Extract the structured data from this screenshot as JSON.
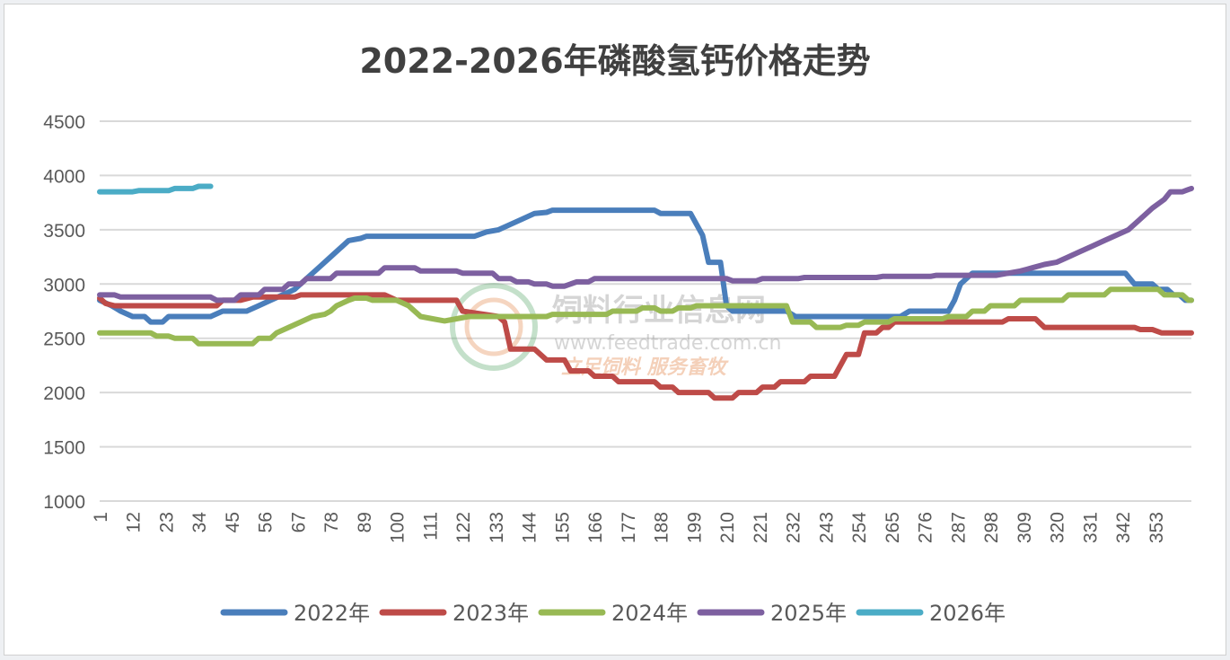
{
  "chart_data": {
    "type": "line",
    "title": "2022-2026年磷酸氢钙价格走势",
    "xlabel": "",
    "ylabel": "",
    "ylim": [
      1000,
      4500
    ],
    "yticks": [
      1000,
      1500,
      2000,
      2500,
      3000,
      3500,
      4000,
      4500
    ],
    "xlim": [
      1,
      365
    ],
    "xticks": [
      1,
      12,
      23,
      34,
      45,
      56,
      67,
      78,
      89,
      100,
      111,
      122,
      133,
      144,
      155,
      166,
      177,
      188,
      199,
      210,
      221,
      232,
      243,
      254,
      265,
      276,
      287,
      298,
      309,
      320,
      331,
      342,
      353
    ],
    "grid": true,
    "legend_position": "bottom",
    "series": [
      {
        "name": "2022年",
        "color": "#4a7ebb",
        "points": [
          [
            1,
            2850
          ],
          [
            5,
            2800
          ],
          [
            8,
            2750
          ],
          [
            12,
            2700
          ],
          [
            16,
            2700
          ],
          [
            18,
            2650
          ],
          [
            22,
            2650
          ],
          [
            24,
            2700
          ],
          [
            28,
            2700
          ],
          [
            38,
            2700
          ],
          [
            42,
            2750
          ],
          [
            50,
            2750
          ],
          [
            54,
            2800
          ],
          [
            58,
            2850
          ],
          [
            62,
            2900
          ],
          [
            66,
            2950
          ],
          [
            70,
            3050
          ],
          [
            74,
            3150
          ],
          [
            78,
            3250
          ],
          [
            82,
            3350
          ],
          [
            84,
            3400
          ],
          [
            88,
            3420
          ],
          [
            90,
            3440
          ],
          [
            126,
            3440
          ],
          [
            130,
            3480
          ],
          [
            134,
            3500
          ],
          [
            138,
            3550
          ],
          [
            142,
            3600
          ],
          [
            146,
            3650
          ],
          [
            150,
            3660
          ],
          [
            152,
            3680
          ],
          [
            186,
            3680
          ],
          [
            188,
            3650
          ],
          [
            198,
            3650
          ],
          [
            200,
            3550
          ],
          [
            202,
            3450
          ],
          [
            204,
            3200
          ],
          [
            208,
            3200
          ],
          [
            210,
            2800
          ],
          [
            212,
            2750
          ],
          [
            230,
            2750
          ],
          [
            233,
            2700
          ],
          [
            268,
            2700
          ],
          [
            271,
            2750
          ],
          [
            284,
            2750
          ],
          [
            286,
            2850
          ],
          [
            288,
            3000
          ],
          [
            290,
            3050
          ],
          [
            292,
            3100
          ],
          [
            343,
            3100
          ],
          [
            346,
            3000
          ],
          [
            352,
            3000
          ],
          [
            354,
            2950
          ],
          [
            357,
            2950
          ],
          [
            359,
            2900
          ],
          [
            361,
            2900
          ],
          [
            363,
            2850
          ],
          [
            365,
            2850
          ]
        ]
      },
      {
        "name": "2023年",
        "color": "#be4b48",
        "points": [
          [
            1,
            2870
          ],
          [
            3,
            2820
          ],
          [
            6,
            2800
          ],
          [
            40,
            2800
          ],
          [
            42,
            2850
          ],
          [
            48,
            2850
          ],
          [
            52,
            2880
          ],
          [
            66,
            2880
          ],
          [
            68,
            2900
          ],
          [
            96,
            2900
          ],
          [
            100,
            2850
          ],
          [
            120,
            2850
          ],
          [
            122,
            2750
          ],
          [
            134,
            2700
          ],
          [
            136,
            2650
          ],
          [
            138,
            2400
          ],
          [
            146,
            2400
          ],
          [
            150,
            2300
          ],
          [
            156,
            2300
          ],
          [
            158,
            2200
          ],
          [
            164,
            2200
          ],
          [
            166,
            2150
          ],
          [
            172,
            2150
          ],
          [
            174,
            2100
          ],
          [
            186,
            2100
          ],
          [
            188,
            2050
          ],
          [
            192,
            2050
          ],
          [
            194,
            2000
          ],
          [
            204,
            2000
          ],
          [
            206,
            1950
          ],
          [
            212,
            1950
          ],
          [
            214,
            2000
          ],
          [
            220,
            2000
          ],
          [
            222,
            2050
          ],
          [
            226,
            2050
          ],
          [
            228,
            2100
          ],
          [
            236,
            2100
          ],
          [
            238,
            2150
          ],
          [
            246,
            2150
          ],
          [
            250,
            2350
          ],
          [
            254,
            2350
          ],
          [
            256,
            2550
          ],
          [
            260,
            2550
          ],
          [
            262,
            2600
          ],
          [
            264,
            2600
          ],
          [
            266,
            2650
          ],
          [
            302,
            2650
          ],
          [
            304,
            2680
          ],
          [
            313,
            2680
          ],
          [
            316,
            2600
          ],
          [
            346,
            2600
          ],
          [
            348,
            2580
          ],
          [
            352,
            2580
          ],
          [
            355,
            2550
          ],
          [
            365,
            2550
          ]
        ]
      },
      {
        "name": "2024年",
        "color": "#98b954",
        "points": [
          [
            1,
            2550
          ],
          [
            18,
            2550
          ],
          [
            20,
            2520
          ],
          [
            24,
            2520
          ],
          [
            26,
            2500
          ],
          [
            32,
            2500
          ],
          [
            34,
            2450
          ],
          [
            52,
            2450
          ],
          [
            54,
            2500
          ],
          [
            58,
            2500
          ],
          [
            60,
            2550
          ],
          [
            64,
            2600
          ],
          [
            68,
            2650
          ],
          [
            72,
            2700
          ],
          [
            76,
            2720
          ],
          [
            78,
            2750
          ],
          [
            80,
            2800
          ],
          [
            84,
            2850
          ],
          [
            86,
            2870
          ],
          [
            90,
            2870
          ],
          [
            92,
            2850
          ],
          [
            100,
            2850
          ],
          [
            104,
            2800
          ],
          [
            108,
            2700
          ],
          [
            112,
            2680
          ],
          [
            116,
            2660
          ],
          [
            120,
            2680
          ],
          [
            124,
            2700
          ],
          [
            150,
            2700
          ],
          [
            152,
            2720
          ],
          [
            170,
            2720
          ],
          [
            172,
            2750
          ],
          [
            180,
            2750
          ],
          [
            182,
            2780
          ],
          [
            186,
            2780
          ],
          [
            188,
            2750
          ],
          [
            192,
            2750
          ],
          [
            194,
            2780
          ],
          [
            198,
            2780
          ],
          [
            200,
            2800
          ],
          [
            230,
            2800
          ],
          [
            232,
            2650
          ],
          [
            238,
            2650
          ],
          [
            240,
            2600
          ],
          [
            248,
            2600
          ],
          [
            250,
            2620
          ],
          [
            254,
            2620
          ],
          [
            256,
            2650
          ],
          [
            264,
            2650
          ],
          [
            266,
            2680
          ],
          [
            282,
            2680
          ],
          [
            284,
            2700
          ],
          [
            290,
            2700
          ],
          [
            292,
            2750
          ],
          [
            296,
            2750
          ],
          [
            298,
            2800
          ],
          [
            306,
            2800
          ],
          [
            308,
            2850
          ],
          [
            322,
            2850
          ],
          [
            324,
            2900
          ],
          [
            336,
            2900
          ],
          [
            338,
            2950
          ],
          [
            354,
            2950
          ],
          [
            356,
            2900
          ],
          [
            362,
            2900
          ],
          [
            364,
            2850
          ],
          [
            365,
            2850
          ]
        ]
      },
      {
        "name": "2025年",
        "color": "#7d60a0",
        "points": [
          [
            1,
            2900
          ],
          [
            6,
            2900
          ],
          [
            8,
            2880
          ],
          [
            38,
            2880
          ],
          [
            40,
            2850
          ],
          [
            46,
            2850
          ],
          [
            48,
            2900
          ],
          [
            54,
            2900
          ],
          [
            56,
            2950
          ],
          [
            62,
            2950
          ],
          [
            64,
            3000
          ],
          [
            68,
            3000
          ],
          [
            70,
            3050
          ],
          [
            78,
            3050
          ],
          [
            80,
            3100
          ],
          [
            94,
            3100
          ],
          [
            96,
            3150
          ],
          [
            106,
            3150
          ],
          [
            108,
            3120
          ],
          [
            120,
            3120
          ],
          [
            122,
            3100
          ],
          [
            132,
            3100
          ],
          [
            134,
            3050
          ],
          [
            138,
            3050
          ],
          [
            140,
            3020
          ],
          [
            144,
            3020
          ],
          [
            146,
            3000
          ],
          [
            150,
            3000
          ],
          [
            152,
            2980
          ],
          [
            156,
            2980
          ],
          [
            158,
            3000
          ],
          [
            160,
            3020
          ],
          [
            164,
            3020
          ],
          [
            166,
            3050
          ],
          [
            210,
            3050
          ],
          [
            212,
            3030
          ],
          [
            220,
            3030
          ],
          [
            222,
            3050
          ],
          [
            234,
            3050
          ],
          [
            236,
            3060
          ],
          [
            260,
            3060
          ],
          [
            262,
            3070
          ],
          [
            278,
            3070
          ],
          [
            280,
            3080
          ],
          [
            300,
            3080
          ],
          [
            304,
            3100
          ],
          [
            308,
            3120
          ],
          [
            312,
            3150
          ],
          [
            316,
            3180
          ],
          [
            320,
            3200
          ],
          [
            324,
            3250
          ],
          [
            328,
            3300
          ],
          [
            332,
            3350
          ],
          [
            336,
            3400
          ],
          [
            340,
            3450
          ],
          [
            344,
            3500
          ],
          [
            348,
            3600
          ],
          [
            352,
            3700
          ],
          [
            356,
            3780
          ],
          [
            358,
            3850
          ],
          [
            362,
            3850
          ],
          [
            364,
            3870
          ],
          [
            365,
            3880
          ]
        ]
      },
      {
        "name": "2026年",
        "color": "#4bacc6",
        "points": [
          [
            1,
            3850
          ],
          [
            12,
            3850
          ],
          [
            14,
            3860
          ],
          [
            24,
            3860
          ],
          [
            26,
            3880
          ],
          [
            32,
            3880
          ],
          [
            34,
            3900
          ],
          [
            38,
            3900
          ]
        ]
      }
    ],
    "watermark": {
      "name": "饲料行业信息网",
      "url": "www.feedtrade.com.cn",
      "slogan": "立足饲料  服务畜牧"
    }
  }
}
